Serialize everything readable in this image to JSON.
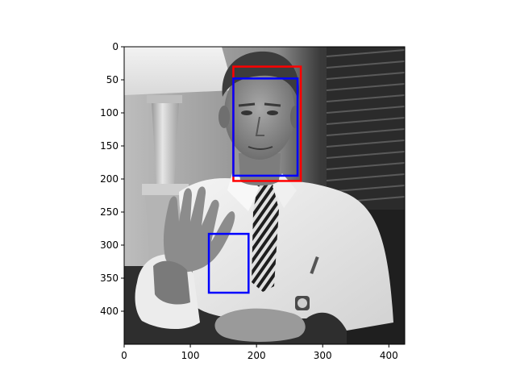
{
  "image": {
    "description_tag": "grayscale-photo",
    "width": 424,
    "height": 450
  },
  "axes": {
    "xlim": [
      0,
      424
    ],
    "ylim": [
      450,
      0
    ],
    "x_ticks": [
      0,
      100,
      200,
      300,
      400
    ],
    "y_ticks": [
      0,
      50,
      100,
      150,
      200,
      250,
      300,
      350,
      400
    ],
    "x_tick_labels": [
      "0",
      "100",
      "200",
      "300",
      "400"
    ],
    "y_tick_labels": [
      "0",
      "50",
      "100",
      "150",
      "200",
      "250",
      "300",
      "350",
      "400"
    ]
  },
  "boxes": [
    {
      "name": "red-box",
      "color": "#ff0000",
      "x0": 165,
      "y0": 30,
      "x1": 267,
      "y1": 203
    },
    {
      "name": "blue-box-face",
      "color": "#0000ff",
      "x0": 165,
      "y0": 48,
      "x1": 262,
      "y1": 195
    },
    {
      "name": "blue-box-hand",
      "color": "#0000ff",
      "x0": 128,
      "y0": 283,
      "x1": 188,
      "y1": 372
    }
  ]
}
